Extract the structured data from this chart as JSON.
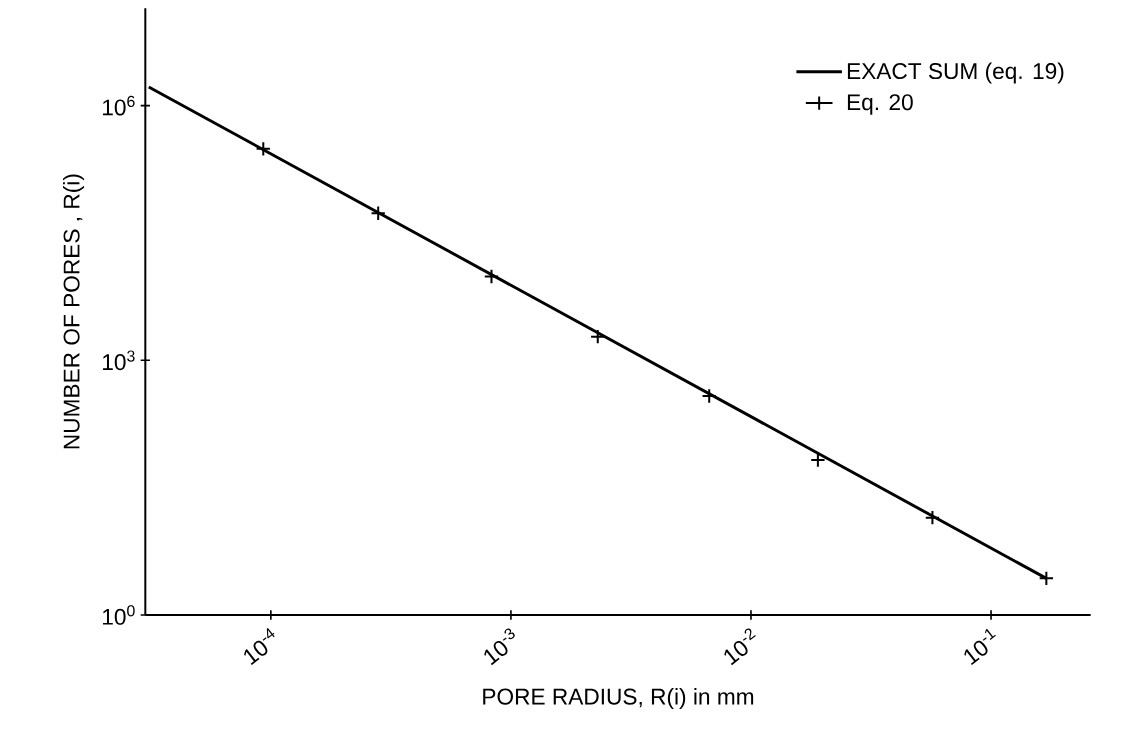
{
  "chart_data": {
    "type": "line",
    "xlabel": "PORE RADIUS, R(i) in mm",
    "ylabel": "NUMBER OF PORES , R(i)",
    "log": "xy",
    "xlim": [
      3e-05,
      0.26
    ],
    "ylim": [
      1,
      14000000.0
    ],
    "xticks": [
      {
        "value": 0.0001,
        "label": "10$^{-4}$"
      },
      {
        "value": 0.001,
        "label": "10$^{-3}$"
      },
      {
        "value": 0.01,
        "label": "10$^{-2}$"
      },
      {
        "value": 0.1,
        "label": "10$^{-1}$"
      }
    ],
    "yticks": [
      {
        "value": 1,
        "label": "10$^{0}$"
      },
      {
        "value": 1000,
        "label": "10$^{3}$"
      },
      {
        "value": 1000000,
        "label": "10$^{6}$"
      }
    ],
    "legend": "top right",
    "grid": false,
    "series": [
      {
        "name": "EXACT SUM (eq. 19)",
        "color": "#000000",
        "marker": "none",
        "line_style": "solid",
        "x": [
          3.1e-05,
          0.17
        ],
        "values": [
          1660000,
          2.7
        ]
      },
      {
        "name": "Eq. 20",
        "type": "scatter",
        "color": "#000000",
        "marker": "cross",
        "x": [
          9.3e-05,
          0.00028,
          0.00083,
          0.0023,
          0.0067,
          0.019,
          0.057,
          0.17
        ],
        "values": [
          310000,
          54000,
          9700,
          1900,
          380,
          67,
          14,
          2.7
        ]
      }
    ]
  }
}
